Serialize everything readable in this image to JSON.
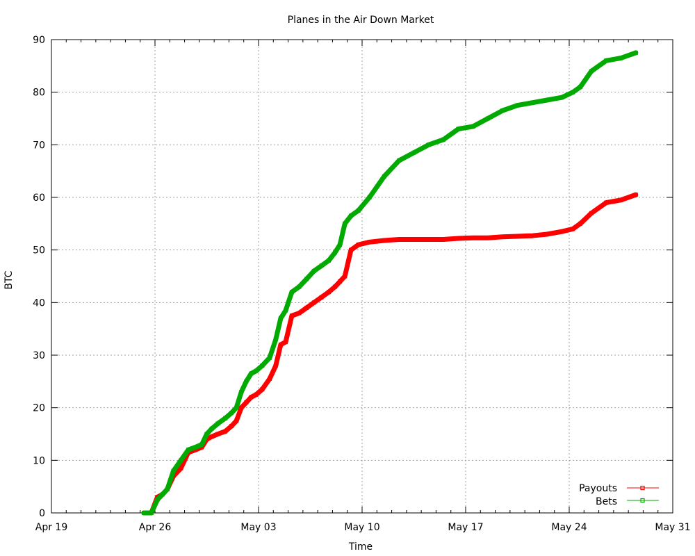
{
  "chart_data": {
    "type": "line",
    "title": "Planes in the Air Down Market",
    "xlabel": "Time",
    "ylabel": "BTC",
    "ylim": [
      0,
      90
    ],
    "xlim": [
      "2013-04-19",
      "2013-05-31"
    ],
    "grid": true,
    "legend_position": "bottom-right",
    "y_ticks": [
      "0",
      "10",
      "20",
      "30",
      "40",
      "50",
      "60",
      "70",
      "80",
      "90"
    ],
    "x_ticks": [
      {
        "date": "2013-04-19",
        "label": "Apr 19"
      },
      {
        "date": "2013-04-26",
        "label": "Apr 26"
      },
      {
        "date": "2013-05-03",
        "label": "May 03"
      },
      {
        "date": "2013-05-10",
        "label": "May 10"
      },
      {
        "date": "2013-05-17",
        "label": "May 17"
      },
      {
        "date": "2013-05-24",
        "label": "May 24"
      },
      {
        "date": "2013-05-31",
        "label": "May 31"
      }
    ],
    "series": [
      {
        "name": "Payouts",
        "color": "#ff0000",
        "x": [
          "2013-04-25",
          "2013-04-25",
          "2013-04-26",
          "2013-04-26",
          "2013-04-26",
          "2013-04-27",
          "2013-04-27",
          "2013-04-28",
          "2013-04-28",
          "2013-04-29",
          "2013-04-29",
          "2013-04-29",
          "2013-04-30",
          "2013-04-30",
          "2013-05-01",
          "2013-05-01",
          "2013-05-01",
          "2013-05-02",
          "2013-05-02",
          "2013-05-02",
          "2013-05-03",
          "2013-05-03",
          "2013-05-04",
          "2013-05-04",
          "2013-05-04",
          "2013-05-05",
          "2013-05-05",
          "2013-05-06",
          "2013-05-06",
          "2013-05-07",
          "2013-05-07",
          "2013-05-08",
          "2013-05-08",
          "2013-05-08",
          "2013-05-09",
          "2013-05-09",
          "2013-05-10",
          "2013-05-11",
          "2013-05-12",
          "2013-05-13",
          "2013-05-14",
          "2013-05-15",
          "2013-05-16",
          "2013-05-17",
          "2013-05-18",
          "2013-05-19",
          "2013-05-20",
          "2013-05-21",
          "2013-05-22",
          "2013-05-23",
          "2013-05-24",
          "2013-05-24",
          "2013-05-25",
          "2013-05-26",
          "2013-05-27",
          "2013-05-28"
        ],
        "y": [
          0,
          0,
          3.0,
          3.5,
          4.5,
          7.0,
          8.5,
          11.5,
          12.0,
          12.5,
          14.0,
          14.5,
          15.0,
          15.5,
          16.5,
          17.5,
          20.0,
          21.0,
          22.0,
          22.5,
          23.5,
          25.5,
          28.0,
          32.0,
          32.5,
          37.5,
          38.0,
          39.0,
          40.0,
          41.0,
          42.0,
          43.0,
          44.0,
          45.0,
          50.0,
          51.0,
          51.5,
          51.8,
          52.0,
          52.0,
          52.0,
          52.0,
          52.2,
          52.3,
          52.3,
          52.5,
          52.6,
          52.7,
          53.0,
          53.5,
          54.0,
          55.0,
          57.0,
          59.0,
          59.5,
          60.5
        ]
      },
      {
        "name": "Bets",
        "color": "#00aa00",
        "x": [
          "2013-04-25",
          "2013-04-25",
          "2013-04-26",
          "2013-04-26",
          "2013-04-26",
          "2013-04-27",
          "2013-04-27",
          "2013-04-28",
          "2013-04-28",
          "2013-04-29",
          "2013-04-29",
          "2013-04-29",
          "2013-04-30",
          "2013-04-30",
          "2013-05-01",
          "2013-05-01",
          "2013-05-01",
          "2013-05-02",
          "2013-05-02",
          "2013-05-02",
          "2013-05-03",
          "2013-05-03",
          "2013-05-04",
          "2013-05-04",
          "2013-05-04",
          "2013-05-05",
          "2013-05-05",
          "2013-05-06",
          "2013-05-06",
          "2013-05-07",
          "2013-05-07",
          "2013-05-08",
          "2013-05-08",
          "2013-05-08",
          "2013-05-09",
          "2013-05-09",
          "2013-05-10",
          "2013-05-11",
          "2013-05-12",
          "2013-05-13",
          "2013-05-14",
          "2013-05-15",
          "2013-05-16",
          "2013-05-17",
          "2013-05-18",
          "2013-05-19",
          "2013-05-20",
          "2013-05-21",
          "2013-05-22",
          "2013-05-23",
          "2013-05-24",
          "2013-05-24",
          "2013-05-25",
          "2013-05-26",
          "2013-05-27",
          "2013-05-28"
        ],
        "y": [
          0,
          0,
          2.5,
          3.5,
          4.5,
          8.0,
          10.0,
          12.0,
          12.5,
          13.0,
          15.0,
          16.0,
          17.0,
          18.0,
          19.0,
          20.0,
          23.0,
          25.0,
          26.5,
          27.0,
          28.0,
          29.5,
          33.0,
          37.0,
          38.5,
          42.0,
          43.0,
          44.5,
          46.0,
          47.0,
          48.0,
          49.5,
          51.0,
          55.0,
          56.5,
          57.5,
          60.0,
          64.0,
          67.0,
          68.5,
          70.0,
          71.0,
          73.0,
          73.5,
          75.0,
          76.5,
          77.5,
          78.0,
          78.5,
          79.0,
          80.0,
          81.0,
          84.0,
          86.0,
          86.5,
          87.5
        ]
      }
    ]
  }
}
